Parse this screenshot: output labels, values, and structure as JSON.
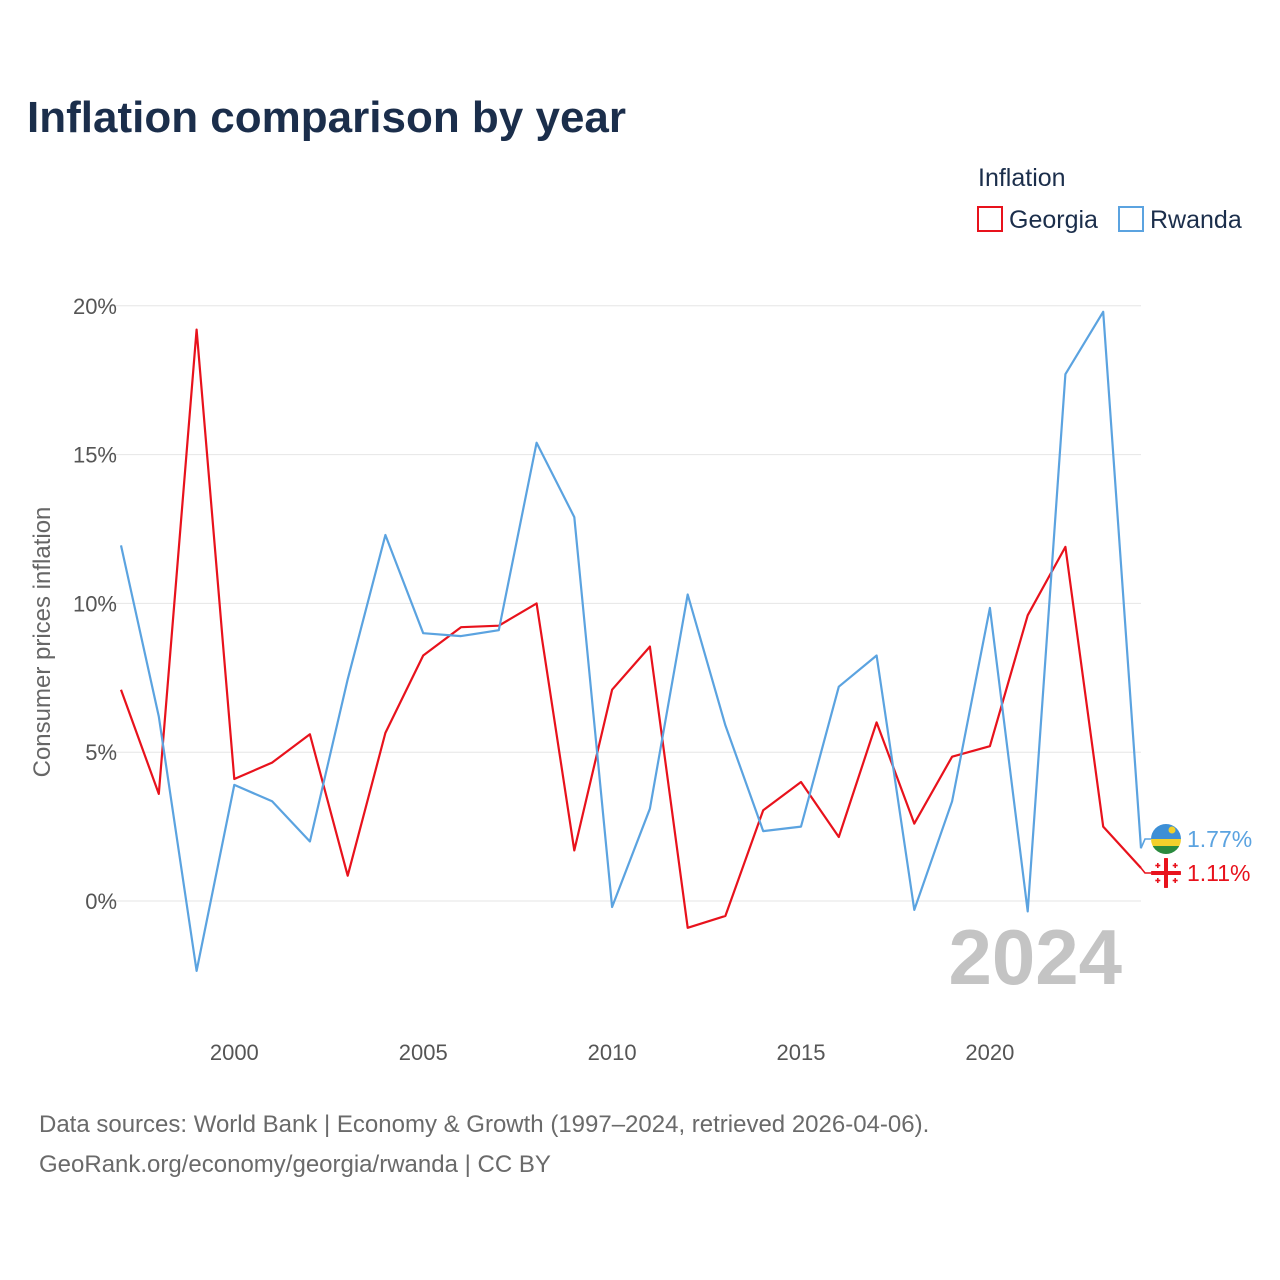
{
  "title": "Inflation comparison by year",
  "legend": {
    "title": "Inflation",
    "items": [
      {
        "name": "Georgia",
        "color": "#e8121c"
      },
      {
        "name": "Rwanda",
        "color": "#5ba3e0"
      }
    ]
  },
  "watermark_year": "2024",
  "source_line1": "Data sources: World Bank | Economy & Growth (1997–2024, retrieved 2026-04-06).",
  "source_line2": "GeoRank.org/economy/georgia/rwanda | CC BY",
  "chart_data": {
    "type": "line",
    "title": "Inflation comparison by year",
    "xlabel": "",
    "ylabel": "Consumer prices inflation",
    "xlim": [
      1997,
      2024
    ],
    "ylim": [
      -3.6,
      20
    ],
    "x_ticks": [
      2000,
      2005,
      2010,
      2015,
      2020
    ],
    "y_ticks": [
      0,
      5,
      10,
      15,
      20
    ],
    "y_tick_labels": [
      "0%",
      "5%",
      "10%",
      "15%",
      "20%"
    ],
    "grid": true,
    "legend_position": "top-right",
    "x": [
      1997,
      1998,
      1999,
      2000,
      2001,
      2002,
      2003,
      2004,
      2005,
      2006,
      2007,
      2008,
      2009,
      2010,
      2011,
      2012,
      2013,
      2014,
      2015,
      2016,
      2017,
      2018,
      2019,
      2020,
      2021,
      2022,
      2023,
      2024
    ],
    "series": [
      {
        "name": "Georgia",
        "color": "#e8121c",
        "values": [
          7.1,
          3.6,
          19.2,
          4.1,
          4.65,
          5.6,
          0.85,
          5.65,
          8.25,
          9.2,
          9.25,
          10.0,
          1.7,
          7.1,
          8.55,
          -0.9,
          -0.5,
          3.05,
          4.0,
          2.15,
          6.0,
          2.6,
          4.85,
          5.2,
          9.6,
          11.9,
          2.5,
          1.11
        ],
        "end_label": "1.11%"
      },
      {
        "name": "Rwanda",
        "color": "#5ba3e0",
        "values": [
          11.95,
          6.2,
          -2.35,
          3.9,
          3.35,
          2.0,
          7.45,
          12.3,
          9.0,
          8.9,
          9.1,
          15.4,
          12.9,
          -0.2,
          3.1,
          10.3,
          5.9,
          2.35,
          2.5,
          7.2,
          8.25,
          -0.3,
          3.35,
          9.85,
          -0.35,
          17.7,
          19.8,
          1.77
        ],
        "end_label": "1.77%"
      }
    ]
  }
}
